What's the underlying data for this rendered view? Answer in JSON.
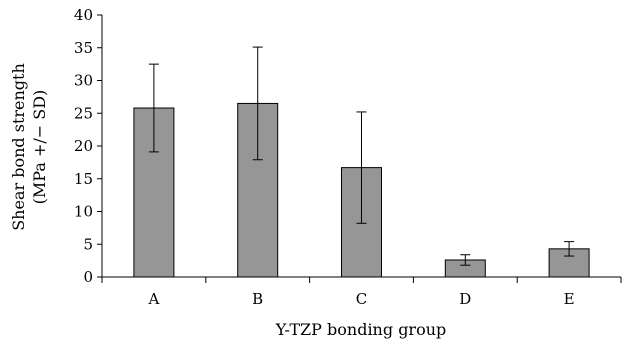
{
  "chart_data": {
    "type": "bar",
    "categories": [
      "A",
      "B",
      "C",
      "D",
      "E"
    ],
    "series": [
      {
        "values": [
          25.8,
          26.5,
          16.7,
          2.6,
          4.3
        ],
        "error": [
          6.7,
          8.6,
          8.5,
          0.8,
          1.1
        ]
      }
    ],
    "xlabel": "Y-TZP bonding group",
    "ylabel_lines": [
      "Shear bond strength",
      "(MPa +/− SD)"
    ],
    "ylim": [
      0,
      40
    ],
    "yticks": [
      0,
      5,
      10,
      15,
      20,
      25,
      30,
      35,
      40
    ],
    "grid": false,
    "legend": "none",
    "colors": {
      "bar_fill": "#969696",
      "bar_stroke": "#000000",
      "axis": "#000000"
    }
  }
}
